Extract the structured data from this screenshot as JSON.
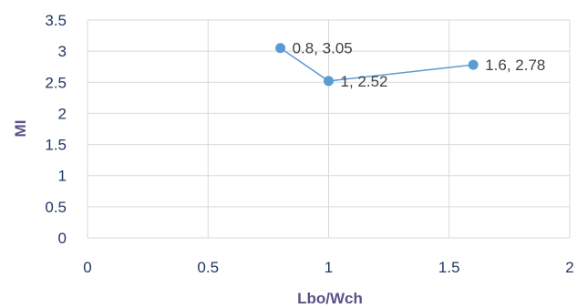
{
  "chart_data": {
    "type": "scatter",
    "title": "",
    "xlabel": "Lbo/Wch",
    "ylabel": "MI",
    "xlim": [
      0,
      2
    ],
    "ylim": [
      0,
      3.5
    ],
    "x_ticks": [
      "0",
      "0.5",
      "1",
      "1.5",
      "2"
    ],
    "y_ticks": [
      "0",
      "0.5",
      "1",
      "1.5",
      "2",
      "2.5",
      "3",
      "3.5"
    ],
    "grid": "both",
    "series": [
      {
        "color": "#5b9bd5",
        "lines": true,
        "points": [
          {
            "x": 0.8,
            "y": 3.05,
            "label": "0.8, 3.05"
          },
          {
            "x": 1,
            "y": 2.52,
            "label": "1, 2.52"
          },
          {
            "x": 1.6,
            "y": 2.78,
            "label": "1.6, 2.78"
          }
        ]
      }
    ]
  }
}
